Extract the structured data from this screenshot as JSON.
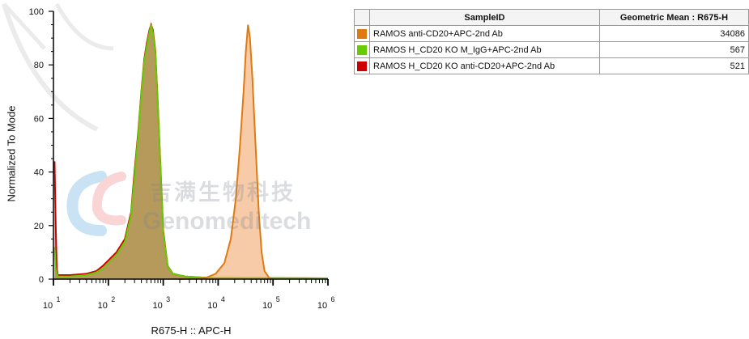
{
  "chart_data": {
    "type": "area",
    "xscale": "log",
    "xlim": [
      10,
      1000000
    ],
    "ylim": [
      0,
      100
    ],
    "xlabel": "R675-H :: APC-H",
    "ylabel": "Normalized To Mode",
    "yticks": [
      "0",
      "20",
      "40",
      "60",
      "80",
      "100"
    ],
    "xtick_bases": [
      "10",
      "10",
      "10",
      "10",
      "10",
      "10"
    ],
    "xtick_exponents": [
      "1",
      "2",
      "3",
      "4",
      "5",
      "6"
    ],
    "series": [
      {
        "name": "RAMOS H_CD20 KO anti-CD20+APC-2nd Ab",
        "color": "#cc0000",
        "fill": "#cc0000",
        "fill_opacity": 0.45,
        "points": [
          [
            10.5,
            44
          ],
          [
            11,
            20
          ],
          [
            11.5,
            4
          ],
          [
            12,
            1.5
          ],
          [
            20,
            1.5
          ],
          [
            40,
            2
          ],
          [
            60,
            3
          ],
          [
            80,
            5
          ],
          [
            100,
            7
          ],
          [
            140,
            10
          ],
          [
            200,
            15
          ],
          [
            260,
            25
          ],
          [
            300,
            40
          ],
          [
            350,
            55
          ],
          [
            400,
            70
          ],
          [
            450,
            82
          ],
          [
            500,
            88
          ],
          [
            560,
            93
          ],
          [
            600,
            95
          ],
          [
            650,
            93
          ],
          [
            720,
            85
          ],
          [
            800,
            65
          ],
          [
            900,
            40
          ],
          [
            1000,
            18
          ],
          [
            1200,
            5
          ],
          [
            1500,
            2
          ],
          [
            2500,
            1
          ],
          [
            6000,
            0.5
          ],
          [
            1000000,
            0.3
          ]
        ]
      },
      {
        "name": "RAMOS H_CD20 KO M_IgG+APC-2nd Ab",
        "color": "#66cc00",
        "fill": "#77aa22",
        "fill_opacity": 0.45,
        "points": [
          [
            10.5,
            12
          ],
          [
            11,
            4
          ],
          [
            12,
            1
          ],
          [
            20,
            1
          ],
          [
            40,
            1.5
          ],
          [
            60,
            2.5
          ],
          [
            80,
            4
          ],
          [
            100,
            6
          ],
          [
            140,
            9
          ],
          [
            200,
            14
          ],
          [
            260,
            24
          ],
          [
            300,
            38
          ],
          [
            350,
            54
          ],
          [
            400,
            69
          ],
          [
            450,
            81
          ],
          [
            500,
            87
          ],
          [
            560,
            92
          ],
          [
            600,
            95
          ],
          [
            650,
            92
          ],
          [
            720,
            84
          ],
          [
            800,
            64
          ],
          [
            900,
            39
          ],
          [
            1000,
            17
          ],
          [
            1200,
            5
          ],
          [
            1500,
            2
          ],
          [
            2500,
            1
          ],
          [
            6000,
            0.5
          ],
          [
            1000000,
            0.3
          ]
        ]
      },
      {
        "name": "RAMOS anti-CD20+APC-2nd Ab",
        "color": "#e07a10",
        "fill": "#f0a060",
        "fill_opacity": 0.55,
        "points": [
          [
            2000,
            0
          ],
          [
            6000,
            0.5
          ],
          [
            9000,
            2
          ],
          [
            13000,
            6
          ],
          [
            17000,
            15
          ],
          [
            21000,
            30
          ],
          [
            25000,
            50
          ],
          [
            29000,
            70
          ],
          [
            32000,
            85
          ],
          [
            35000,
            95
          ],
          [
            38000,
            90
          ],
          [
            42000,
            75
          ],
          [
            48000,
            50
          ],
          [
            55000,
            25
          ],
          [
            62000,
            10
          ],
          [
            70000,
            3
          ],
          [
            85000,
            0.5
          ],
          [
            100000,
            0
          ]
        ]
      }
    ],
    "table": {
      "headers": [
        "SampleID",
        "Geometric Mean : R675-H"
      ],
      "rows": [
        {
          "sample": "RAMOS anti-CD20+APC-2nd Ab",
          "color": "#e07a10",
          "value": "34086"
        },
        {
          "sample": "RAMOS H_CD20 KO M_IgG+APC-2nd Ab",
          "color": "#66cc00",
          "value": "567"
        },
        {
          "sample": "RAMOS H_CD20 KO anti-CD20+APC-2nd Ab",
          "color": "#cc0000",
          "value": "521"
        }
      ]
    }
  },
  "watermark": {
    "line1": "吉满生物科技",
    "line2": "Genomeditech"
  }
}
